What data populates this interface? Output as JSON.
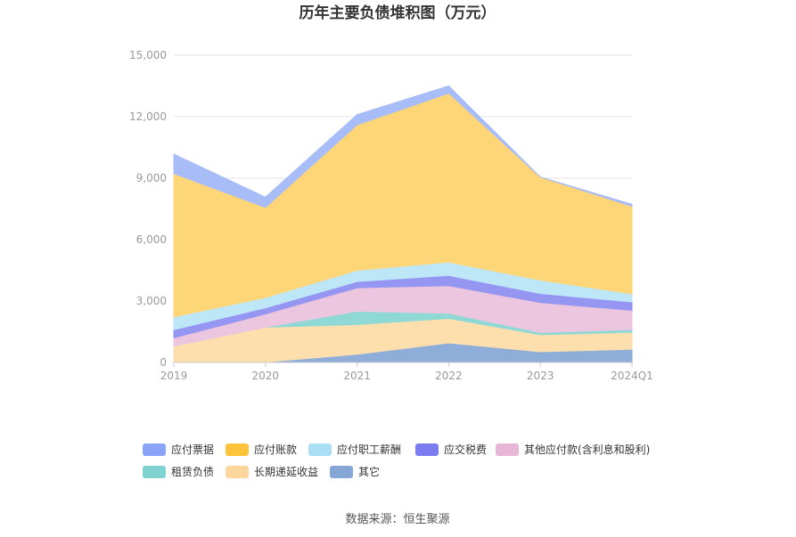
{
  "chart_data": {
    "type": "area",
    "stacked": true,
    "title": "历年主要负债堆积图（万元）",
    "categories": [
      "2019",
      "2020",
      "2021",
      "2022",
      "2023",
      "2024Q1"
    ],
    "ylim": [
      0,
      15000
    ],
    "yticks": [
      0,
      3000,
      6000,
      9000,
      12000,
      15000
    ],
    "ytick_labels": [
      "0",
      "3,000",
      "6,000",
      "9,000",
      "12,000",
      "15,000"
    ],
    "grid": true,
    "legend_position": "bottom",
    "series": [
      {
        "name": "其它",
        "color": "#8eadd9",
        "values": [
          10,
          20,
          400,
          950,
          520,
          650
        ]
      },
      {
        "name": "长期递延收益",
        "color": "#fddfae",
        "values": [
          790,
          1700,
          1450,
          1200,
          830,
          830
        ]
      },
      {
        "name": "租赁负债",
        "color": "#8ed8d6",
        "values": [
          0,
          0,
          650,
          250,
          120,
          120
        ]
      },
      {
        "name": "其他应付款(含利息和股利)",
        "color": "#ecc5de",
        "values": [
          400,
          650,
          1150,
          1350,
          1450,
          950
        ]
      },
      {
        "name": "应交税费",
        "color": "#9596f2",
        "values": [
          400,
          300,
          300,
          500,
          450,
          400
        ]
      },
      {
        "name": "应付职工薪酬",
        "color": "#bde6f7",
        "values": [
          620,
          500,
          550,
          650,
          650,
          400
        ]
      },
      {
        "name": "应付账款",
        "color": "#fed677",
        "values": [
          7000,
          4400,
          7100,
          8250,
          5030,
          4270
        ]
      },
      {
        "name": "应付票据",
        "color": "#a8bcf8",
        "values": [
          950,
          500,
          500,
          350,
          0,
          100
        ]
      }
    ],
    "legend": [
      {
        "name": "应付票据",
        "color": "#8aa4f8"
      },
      {
        "name": "应付账款",
        "color": "#fdc33a"
      },
      {
        "name": "应付职工薪酬",
        "color": "#aadff5"
      },
      {
        "name": "应交税费",
        "color": "#7a7cf0"
      },
      {
        "name": "其他应付款(含利息和股利)",
        "color": "#e7b6d6"
      },
      {
        "name": "租赁负债",
        "color": "#7fd2d0"
      },
      {
        "name": "长期递延收益",
        "color": "#fdd69c"
      },
      {
        "name": "其它",
        "color": "#86a6d6"
      }
    ]
  },
  "source": "数据来源：恒生聚源"
}
